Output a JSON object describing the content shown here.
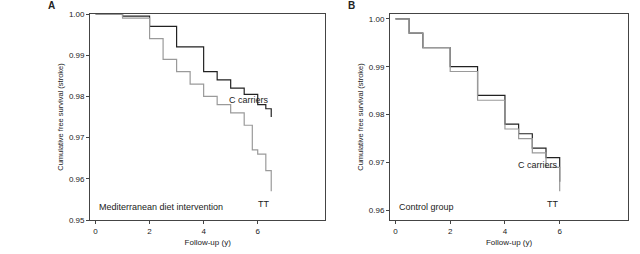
{
  "chart_data": [
    {
      "type": "line",
      "title": "A",
      "annotation": "Mediterranean diet intervention",
      "x_label": "Follow-up (y)",
      "y_label": "Cumulative free survival (stroke)",
      "xlim": [
        -0.2,
        8.5
      ],
      "xticks": [
        0,
        2,
        4,
        6
      ],
      "ylim": [
        0.95,
        1.0
      ],
      "yticks": [
        0.95,
        0.96,
        0.97,
        0.98,
        0.99,
        {
          "value": 1.0,
          "label": "1.00"
        }
      ],
      "grid": false,
      "line_style": "steps",
      "series": [
        {
          "name": "C carriers",
          "color": "#222222",
          "x": [
            0,
            1,
            2,
            3,
            4,
            4.5,
            5,
            5.5,
            6,
            6.3,
            6.5
          ],
          "values": [
            1.0,
            0.9995,
            0.997,
            0.992,
            0.986,
            0.984,
            0.982,
            0.9805,
            0.978,
            0.977,
            0.975
          ]
        },
        {
          "name": "TT",
          "color": "#9a9a9a",
          "x": [
            0,
            1,
            2,
            2.5,
            3,
            3.5,
            4,
            4.5,
            5,
            5.5,
            5.8,
            6,
            6.3,
            6.5
          ],
          "values": [
            1.0,
            0.999,
            0.994,
            0.989,
            0.986,
            0.983,
            0.98,
            0.978,
            0.976,
            0.973,
            0.967,
            0.966,
            0.962,
            0.957
          ]
        }
      ]
    },
    {
      "type": "line",
      "title": "B",
      "annotation": "Control group",
      "x_label": "Follow-up (y)",
      "y_label": "Cumulative free survival (stroke)",
      "xlim": [
        -0.2,
        8.5
      ],
      "xticks": [
        0,
        2,
        4,
        6
      ],
      "ylim": [
        0.958,
        1.001
      ],
      "yticks": [
        0.96,
        0.97,
        0.98,
        0.99,
        {
          "value": 1.0,
          "label": "1.00"
        }
      ],
      "grid": false,
      "line_style": "steps",
      "series": [
        {
          "name": "C carriers",
          "color": "#222222",
          "x": [
            0,
            0.5,
            1,
            2,
            3,
            4,
            4.5,
            5,
            5.5,
            6
          ],
          "values": [
            1.0,
            0.997,
            0.994,
            0.99,
            0.984,
            0.978,
            0.976,
            0.973,
            0.971,
            0.966
          ]
        },
        {
          "name": "TT",
          "color": "#9a9a9a",
          "x": [
            0,
            0.5,
            1,
            2,
            3,
            4,
            4.5,
            5,
            5.5,
            6
          ],
          "values": [
            1.0,
            0.997,
            0.994,
            0.989,
            0.983,
            0.977,
            0.975,
            0.972,
            0.969,
            0.964
          ]
        }
      ]
    }
  ]
}
